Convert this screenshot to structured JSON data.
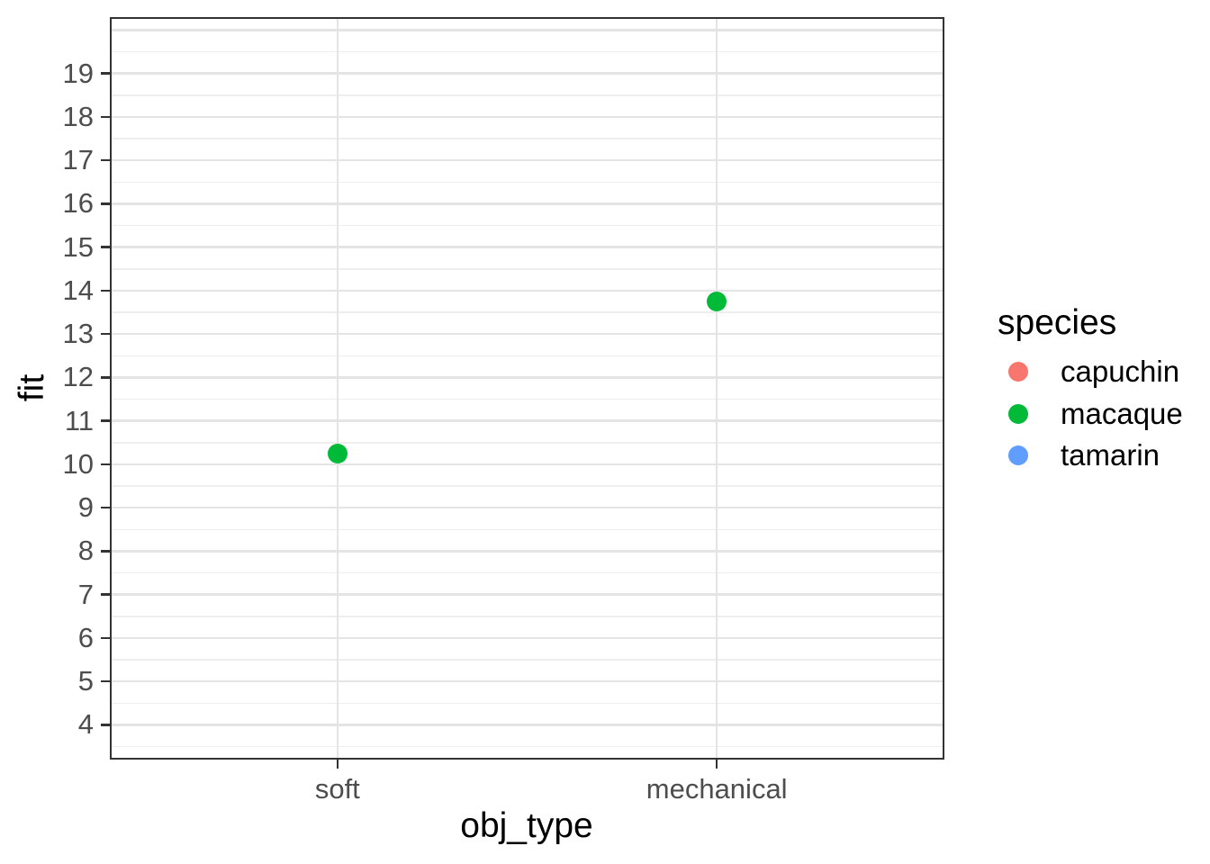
{
  "chart_data": {
    "type": "scatter",
    "title": "",
    "xlabel": "obj_type",
    "ylabel": "fit",
    "x_categories": [
      "soft",
      "mechanical"
    ],
    "y_axis": {
      "tick_labels": [
        4,
        5,
        6,
        7,
        8,
        9,
        10,
        11,
        12,
        13,
        14,
        15,
        16,
        17,
        18,
        19
      ],
      "major_gridlines": [
        4,
        5,
        6,
        7,
        8,
        9,
        10,
        11,
        12,
        13,
        14,
        15,
        16,
        17,
        18,
        19,
        20
      ],
      "minor_gridlines": [
        3.5,
        4.5,
        5.5,
        6.5,
        7.5,
        8.5,
        9.5,
        10.5,
        11.5,
        12.5,
        13.5,
        14.5,
        15.5,
        16.5,
        17.5,
        18.5,
        19.5
      ],
      "ylim": [
        3.2,
        20.3
      ]
    },
    "grid": true,
    "legend": {
      "title": "species",
      "position": "right",
      "entries": [
        {
          "label": "capuchin",
          "color": "#F8766D"
        },
        {
          "label": "macaque",
          "color": "#00BA38"
        },
        {
          "label": "tamarin",
          "color": "#619CFF"
        }
      ]
    },
    "series": [
      {
        "name": "capuchin",
        "color": "#F8766D",
        "points": []
      },
      {
        "name": "macaque",
        "color": "#00BA38",
        "points": [
          {
            "x": "soft",
            "y": 10.25
          },
          {
            "x": "mechanical",
            "y": 13.75
          }
        ]
      },
      {
        "name": "tamarin",
        "color": "#619CFF",
        "points": []
      }
    ]
  },
  "style": {
    "background": "#FFFFFF",
    "panel_border": "#333333",
    "grid_major": "#E4E4E4",
    "grid_minor": "#EEEEEE",
    "tick_color": "#333333",
    "tick_label_color": "#4D4D4D",
    "title_color": "#000000"
  }
}
